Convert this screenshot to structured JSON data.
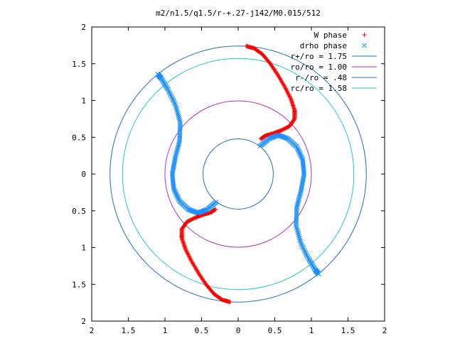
{
  "chart_data": {
    "type": "scatter",
    "title": "m2/n1.5/q1.5/r-+.27-j142/M0.015/512",
    "xlabel": "",
    "ylabel": "",
    "xlim": [
      -2,
      2
    ],
    "ylim": [
      -2,
      2
    ],
    "x_tick_labels": [
      "2",
      "1.5",
      "1",
      "0.5",
      "0",
      "0.5",
      "1",
      "1.5",
      "2"
    ],
    "y_tick_labels": [
      "2",
      "1.5",
      "1",
      "0.5",
      "0",
      "0.5",
      "1",
      "1.5",
      "2"
    ],
    "grid": false,
    "legend_position": "top-right",
    "series": [
      {
        "name": "W phase",
        "marker": "+",
        "color": "#ff0000",
        "points": [
          [
            0.11,
            1.74
          ],
          [
            0.22,
            1.71
          ],
          [
            0.33,
            1.63
          ],
          [
            0.44,
            1.5
          ],
          [
            0.54,
            1.35
          ],
          [
            0.64,
            1.18
          ],
          [
            0.72,
            1.02
          ],
          [
            0.77,
            0.87
          ],
          [
            0.77,
            0.75
          ],
          [
            0.7,
            0.65
          ],
          [
            0.58,
            0.59
          ],
          [
            0.47,
            0.55
          ],
          [
            0.37,
            0.52
          ],
          [
            0.31,
            0.48
          ],
          [
            -0.11,
            -1.74
          ],
          [
            -0.22,
            -1.71
          ],
          [
            -0.33,
            -1.63
          ],
          [
            -0.44,
            -1.5
          ],
          [
            -0.54,
            -1.35
          ],
          [
            -0.64,
            -1.18
          ],
          [
            -0.72,
            -1.02
          ],
          [
            -0.77,
            -0.87
          ],
          [
            -0.77,
            -0.75
          ],
          [
            -0.7,
            -0.65
          ],
          [
            -0.58,
            -0.59
          ],
          [
            -0.47,
            -0.55
          ],
          [
            -0.37,
            -0.52
          ],
          [
            -0.31,
            -0.48
          ]
        ]
      },
      {
        "name": "drho phase",
        "marker": "x",
        "color": "#1e90ff",
        "points": [
          [
            0.3,
            0.38
          ],
          [
            0.42,
            0.48
          ],
          [
            0.55,
            0.53
          ],
          [
            0.68,
            0.48
          ],
          [
            0.8,
            0.37
          ],
          [
            0.88,
            0.2
          ],
          [
            0.9,
            0.0
          ],
          [
            0.86,
            -0.22
          ],
          [
            0.8,
            -0.45
          ],
          [
            0.79,
            -0.7
          ],
          [
            0.86,
            -0.95
          ],
          [
            0.96,
            -1.15
          ],
          [
            1.05,
            -1.3
          ],
          [
            1.1,
            -1.36
          ],
          [
            -0.3,
            -0.38
          ],
          [
            -0.42,
            -0.48
          ],
          [
            -0.55,
            -0.53
          ],
          [
            -0.68,
            -0.48
          ],
          [
            -0.8,
            -0.37
          ],
          [
            -0.88,
            -0.2
          ],
          [
            -0.9,
            0.0
          ],
          [
            -0.86,
            0.22
          ],
          [
            -0.8,
            0.45
          ],
          [
            -0.79,
            0.7
          ],
          [
            -0.86,
            0.95
          ],
          [
            -0.96,
            1.15
          ],
          [
            -1.05,
            1.3
          ],
          [
            -1.1,
            1.36
          ]
        ]
      }
    ],
    "circles": [
      {
        "name": "r+/ro = 1.75",
        "radius": 1.75,
        "color": "#1f6fbf"
      },
      {
        "name": "ro/ro = 1.00",
        "radius": 1.0,
        "color": "#b030c0"
      },
      {
        "name": "r-/ro = .48",
        "radius": 0.48,
        "color": "#1f6fbf"
      },
      {
        "name": "rc/ro = 1.58",
        "radius": 1.58,
        "color": "#20c8c8"
      }
    ]
  }
}
